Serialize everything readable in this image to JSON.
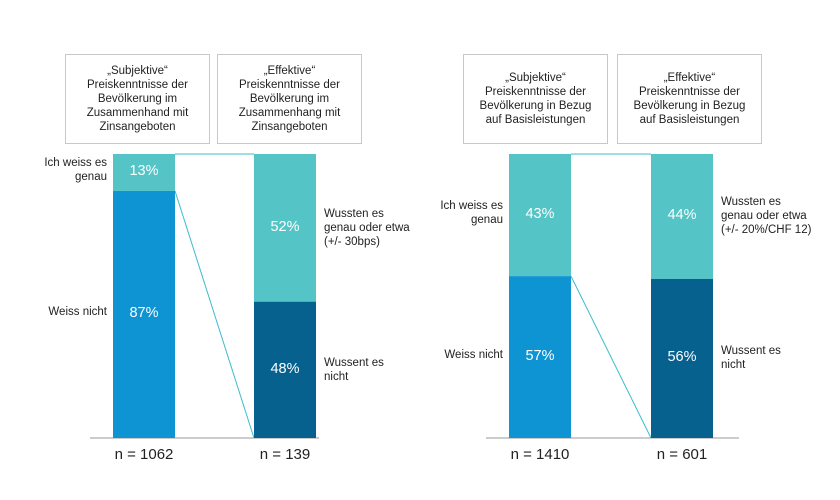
{
  "chart_data": {
    "type": "stacked-bar",
    "colors": {
      "light": "#54c4c6",
      "mid": "#0e94d2",
      "dark": "#06618f",
      "connector": "#3cbccc",
      "axis": "#999999"
    },
    "groups": [
      {
        "bars": [
          {
            "header": "„Subjektive“\nPreiskenntnisse der\nBevölkerung im\nZusammenhand mit\nZinsangeboten",
            "n": "n = 1062",
            "segments": [
              {
                "value": 13,
                "label": "13%",
                "color": "light",
                "side_label": "Ich weiss es\ngenau"
              },
              {
                "value": 87,
                "label": "87%",
                "color": "mid",
                "side_label": "Weiss nicht"
              }
            ]
          },
          {
            "header": "„Effektive“\nPreiskenntnisse der\nBevölkerung im\nZusammenhang mit\nZinsangeboten",
            "n": "n = 139",
            "segments": [
              {
                "value": 52,
                "label": "52%",
                "color": "light",
                "side_label": "Wussten es\ngenau oder etwa\n(+/- 30bps)"
              },
              {
                "value": 48,
                "label": "48%",
                "color": "dark",
                "side_label": "Wussent es\nnicht"
              }
            ]
          }
        ]
      },
      {
        "bars": [
          {
            "header": "„Subjektive“\nPreiskenntnisse der\nBevölkerung in Bezug\nauf Basisleistungen",
            "n": "n = 1410",
            "segments": [
              {
                "value": 43,
                "label": "43%",
                "color": "light",
                "side_label": "Ich weiss es\ngenau"
              },
              {
                "value": 57,
                "label": "57%",
                "color": "mid",
                "side_label": "Weiss nicht"
              }
            ]
          },
          {
            "header": "„Effektive“\nPreiskenntnisse der\nBevölkerung in Bezug\nauf Basisleistungen",
            "n": "n = 601",
            "segments": [
              {
                "value": 44,
                "label": "44%",
                "color": "light",
                "side_label": "Wussten es\ngenau oder etwa\n(+/- 20%/CHF 12)"
              },
              {
                "value": 56,
                "label": "56%",
                "color": "dark",
                "side_label": "Wussent es\nnicht"
              }
            ]
          }
        ]
      }
    ]
  }
}
